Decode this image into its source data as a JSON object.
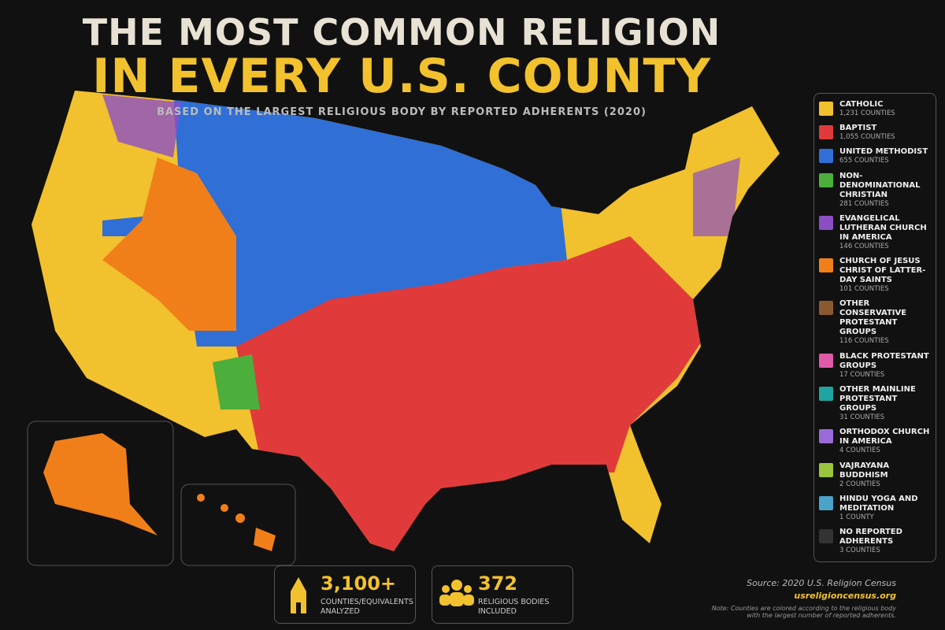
{
  "header": {
    "title_line1": "THE MOST COMMON RELIGION",
    "title_line2": "IN EVERY U.S. COUNTY",
    "subtitle": "BASED ON THE LARGEST RELIGIOUS BODY BY REPORTED ADHERENTS (2020)"
  },
  "legend": {
    "items": [
      {
        "label": "CATHOLIC",
        "count": "1,231 COUNTIES",
        "color": "#f2c12e"
      },
      {
        "label": "BAPTIST",
        "count": "1,055 COUNTIES",
        "color": "#e03a3a"
      },
      {
        "label": "UNITED METHODIST",
        "count": "655 COUNTIES",
        "color": "#2f6fd6"
      },
      {
        "label": "NON-DENOMINATIONAL CHRISTIAN",
        "count": "281 COUNTIES",
        "color": "#4caf3c"
      },
      {
        "label": "EVANGELICAL LUTHERAN CHURCH IN AMERICA",
        "count": "146 COUNTIES",
        "color": "#8b4fc4"
      },
      {
        "label": "CHURCH OF JESUS CHRIST OF LATTER-DAY SAINTS",
        "count": "101 COUNTIES",
        "color": "#f07f1a"
      },
      {
        "label": "OTHER CONSERVATIVE PROTESTANT GROUPS",
        "count": "116 COUNTIES",
        "color": "#8a5a2e"
      },
      {
        "label": "BLACK PROTESTANT GROUPS",
        "count": "17 COUNTIES",
        "color": "#e05aa8"
      },
      {
        "label": "OTHER MAINLINE PROTESTANT GROUPS",
        "count": "31 COUNTIES",
        "color": "#1fa5a0"
      },
      {
        "label": "ORTHODOX CHURCH IN AMERICA",
        "count": "4 COUNTIES",
        "color": "#9a6ad8"
      },
      {
        "label": "VAJRAYANA BUDDHISM",
        "count": "2 COUNTIES",
        "color": "#9bc53d"
      },
      {
        "label": "HINDU YOGA AND MEDITATION",
        "count": "1 COUNTY",
        "color": "#4aa3c9"
      },
      {
        "label": "NO REPORTED ADHERENTS",
        "count": "3 COUNTIES",
        "color": "#333333"
      }
    ]
  },
  "stats": [
    {
      "value": "3,100+",
      "label": "COUNTIES/EQUIVALENTS ANALYZED"
    },
    {
      "value": "372",
      "label": "RELIGIOUS BODIES INCLUDED"
    }
  ],
  "source": {
    "text": "Source: 2020 U.S. Religion Census",
    "url": "usreligioncensus.org",
    "note": "Note: Counties are colored according to the religious body with the largest number of reported adherents."
  }
}
